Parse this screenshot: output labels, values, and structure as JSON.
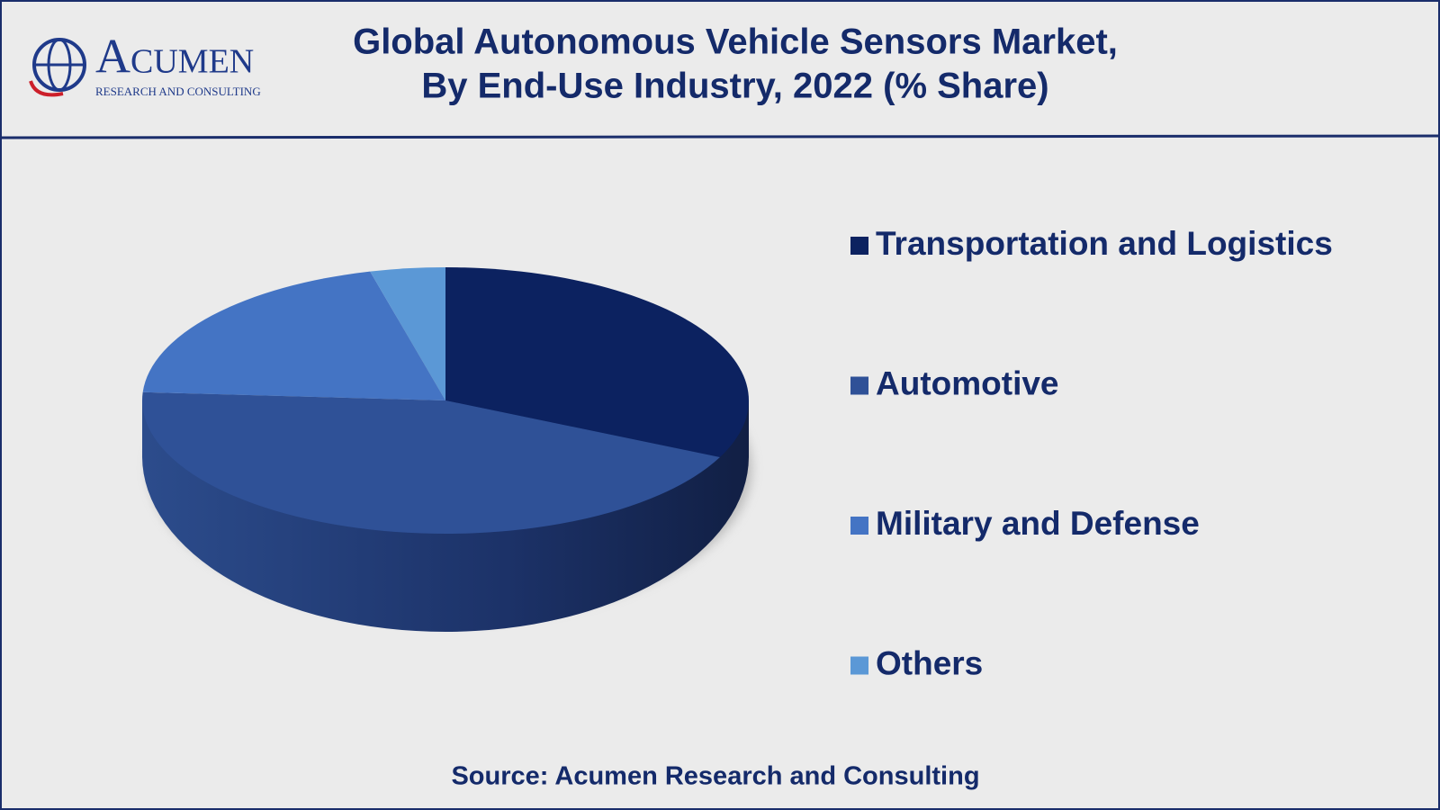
{
  "logo": {
    "name": "Acumen",
    "tagline": "RESEARCH AND CONSULTING"
  },
  "chart_data": {
    "type": "pie",
    "title": [
      "Global Autonomous Vehicle Sensors Market,",
      "By End-Use Industry, 2022 (% Share)"
    ],
    "categories": [
      "Transportation and Logistics",
      "Automotive",
      "Military and Defense",
      "Others"
    ],
    "values": [
      32,
      44,
      20,
      4
    ],
    "colors": [
      "#0c2260",
      "#2f5197",
      "#4474c4",
      "#5b98d6"
    ],
    "source": "Source: Acumen Research and Consulting"
  }
}
